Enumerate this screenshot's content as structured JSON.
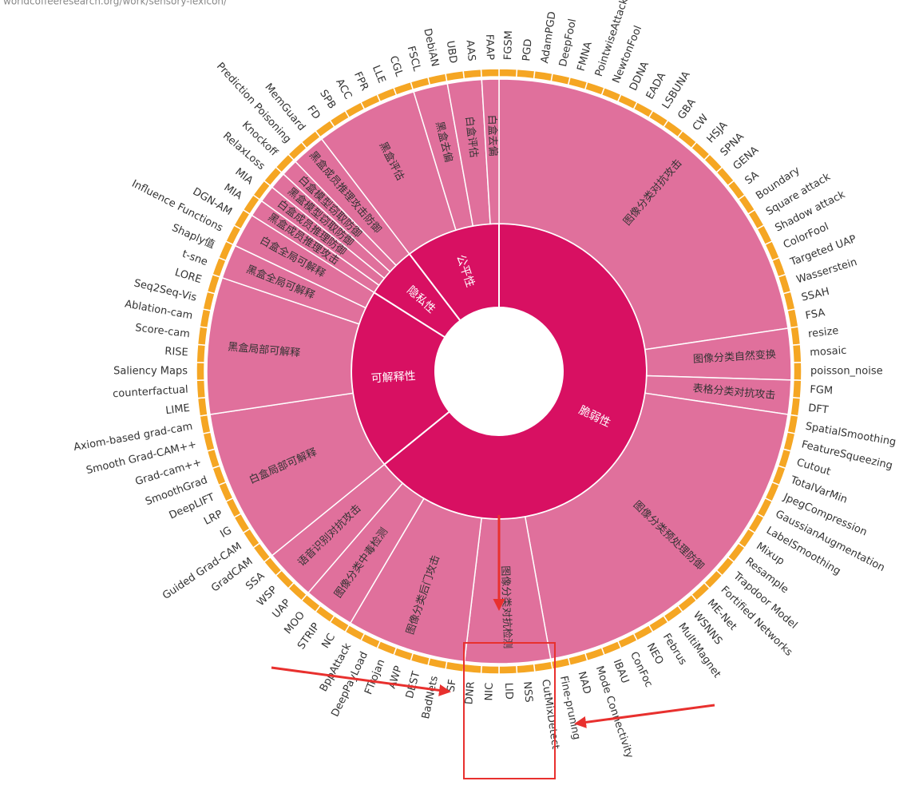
{
  "header": {
    "url": "worldcoffeeresearch.org/work/sensory-lexicon/"
  },
  "chart_data": {
    "type": "sunburst",
    "colors": [
      "#d81062",
      "#e0709c",
      "#f5a623"
    ],
    "children": [
      {
        "name": "脆弱性",
        "children": [
          {
            "name": "图像分类对抗攻击",
            "children": [
              "FGSM",
              "PGD",
              "AdamPGD",
              "DeepFool",
              "FMNA",
              "PointwiseAttack",
              "NewtonFool",
              "DDNA",
              "EADA",
              "LSBUNA",
              "GBA",
              "CW",
              "HSJA",
              "SPNA",
              "GENA",
              "SA",
              "Boundary",
              "Square attack",
              "Shadow attack",
              "ColorFool",
              "Targeted UAP",
              "Wasserstein",
              "SSAH",
              "FSA"
            ]
          },
          {
            "name": "图像分类自然变换",
            "children": [
              "resize",
              "mosaic",
              "poisson_noise"
            ]
          },
          {
            "name": "表格分类对抗攻击",
            "children": [
              "FGM",
              "DFT"
            ]
          },
          {
            "name": "图像分类预处理防御",
            "children": [
              "SpatialSmoothing",
              "FeatureSqueezing",
              "Cutout",
              "TotalVarMin",
              "JpegCompression",
              "GaussianAugmentation",
              "LabelSmoothing",
              "Mixup",
              "Resample",
              "Trapdoor Model",
              "Fortified Networks",
              "ME-Net",
              "WSNNS",
              "MultiMagnet",
              "Februs",
              "NEO",
              "ConFoc",
              "IBAU",
              "Mode Connectivity",
              "NAD",
              "Fine-pruning"
            ]
          },
          {
            "name": "图像分类对抗检测",
            "children": [
              "CutMixDetect",
              "NSS",
              "LID",
              "NIC",
              "DNR"
            ]
          },
          {
            "name": "图像分类后门攻击",
            "children": [
              "SF",
              "BadNets",
              "DEST",
              "AWP",
              "FTrojan",
              "DeepPayLoad",
              "BppAttack"
            ]
          },
          {
            "name": "图像分类中毒检测",
            "children": [
              "NC",
              "STRIP",
              "MOO"
            ]
          },
          {
            "name": "语音识别对抗攻击",
            "children": [
              "UAP",
              "WSP",
              "SSA"
            ]
          }
        ]
      },
      {
        "name": "可解释性",
        "children": [
          {
            "name": "白盒局部可解释",
            "children": [
              "GradCAM",
              "Guided Grad-CAM",
              "IG",
              "LRP",
              "DeepLIFT",
              "SmoothGrad",
              "Grad-cam++",
              "Smooth Grad-CAM++",
              "Axiom-based grad-cam"
            ]
          },
          {
            "name": "黑盒局部可解释",
            "children": [
              "LIME",
              "counterfactual",
              "Saliency Maps",
              "RISE",
              "Score-cam",
              "Ablation-cam",
              "Seq2Seq-Vis",
              "LORE"
            ]
          },
          {
            "name": "黑盒全局可解释",
            "children": [
              "t-sne",
              "Shaply值"
            ]
          },
          {
            "name": "白盒全局可解释",
            "children": [
              "Influence Functions",
              "DGN-AM"
            ]
          }
        ]
      },
      {
        "name": "隐私性",
        "children": [
          {
            "name": "黑盒成员推理攻击",
            "children": [
              "MIA"
            ]
          },
          {
            "name": "白盒成员推理防御",
            "children": [
              "MIA"
            ]
          },
          {
            "name": "黑盒模型窃取防御",
            "children": [
              "RelaxLoss"
            ]
          },
          {
            "name": "白盒模型窃取防御",
            "children": [
              "Knockoff"
            ]
          },
          {
            "name": "黑盒成员推理攻击防御",
            "children": [
              "Prediction Poisoning",
              "MemGuard"
            ]
          }
        ]
      },
      {
        "name": "公平性",
        "children": [
          {
            "name": "黑盒评估",
            "children": [
              "FD",
              "SPB",
              "ACC",
              "FPR",
              "LLE",
              "CGL"
            ]
          },
          {
            "name": "黑盒去偏",
            "children": [
              "FSCL",
              "DebiAN"
            ]
          },
          {
            "name": "白盒评估",
            "children": [
              "UBD",
              "AAS"
            ]
          },
          {
            "name": "白盒去偏",
            "children": [
              "FAAP"
            ]
          }
        ]
      }
    ]
  }
}
